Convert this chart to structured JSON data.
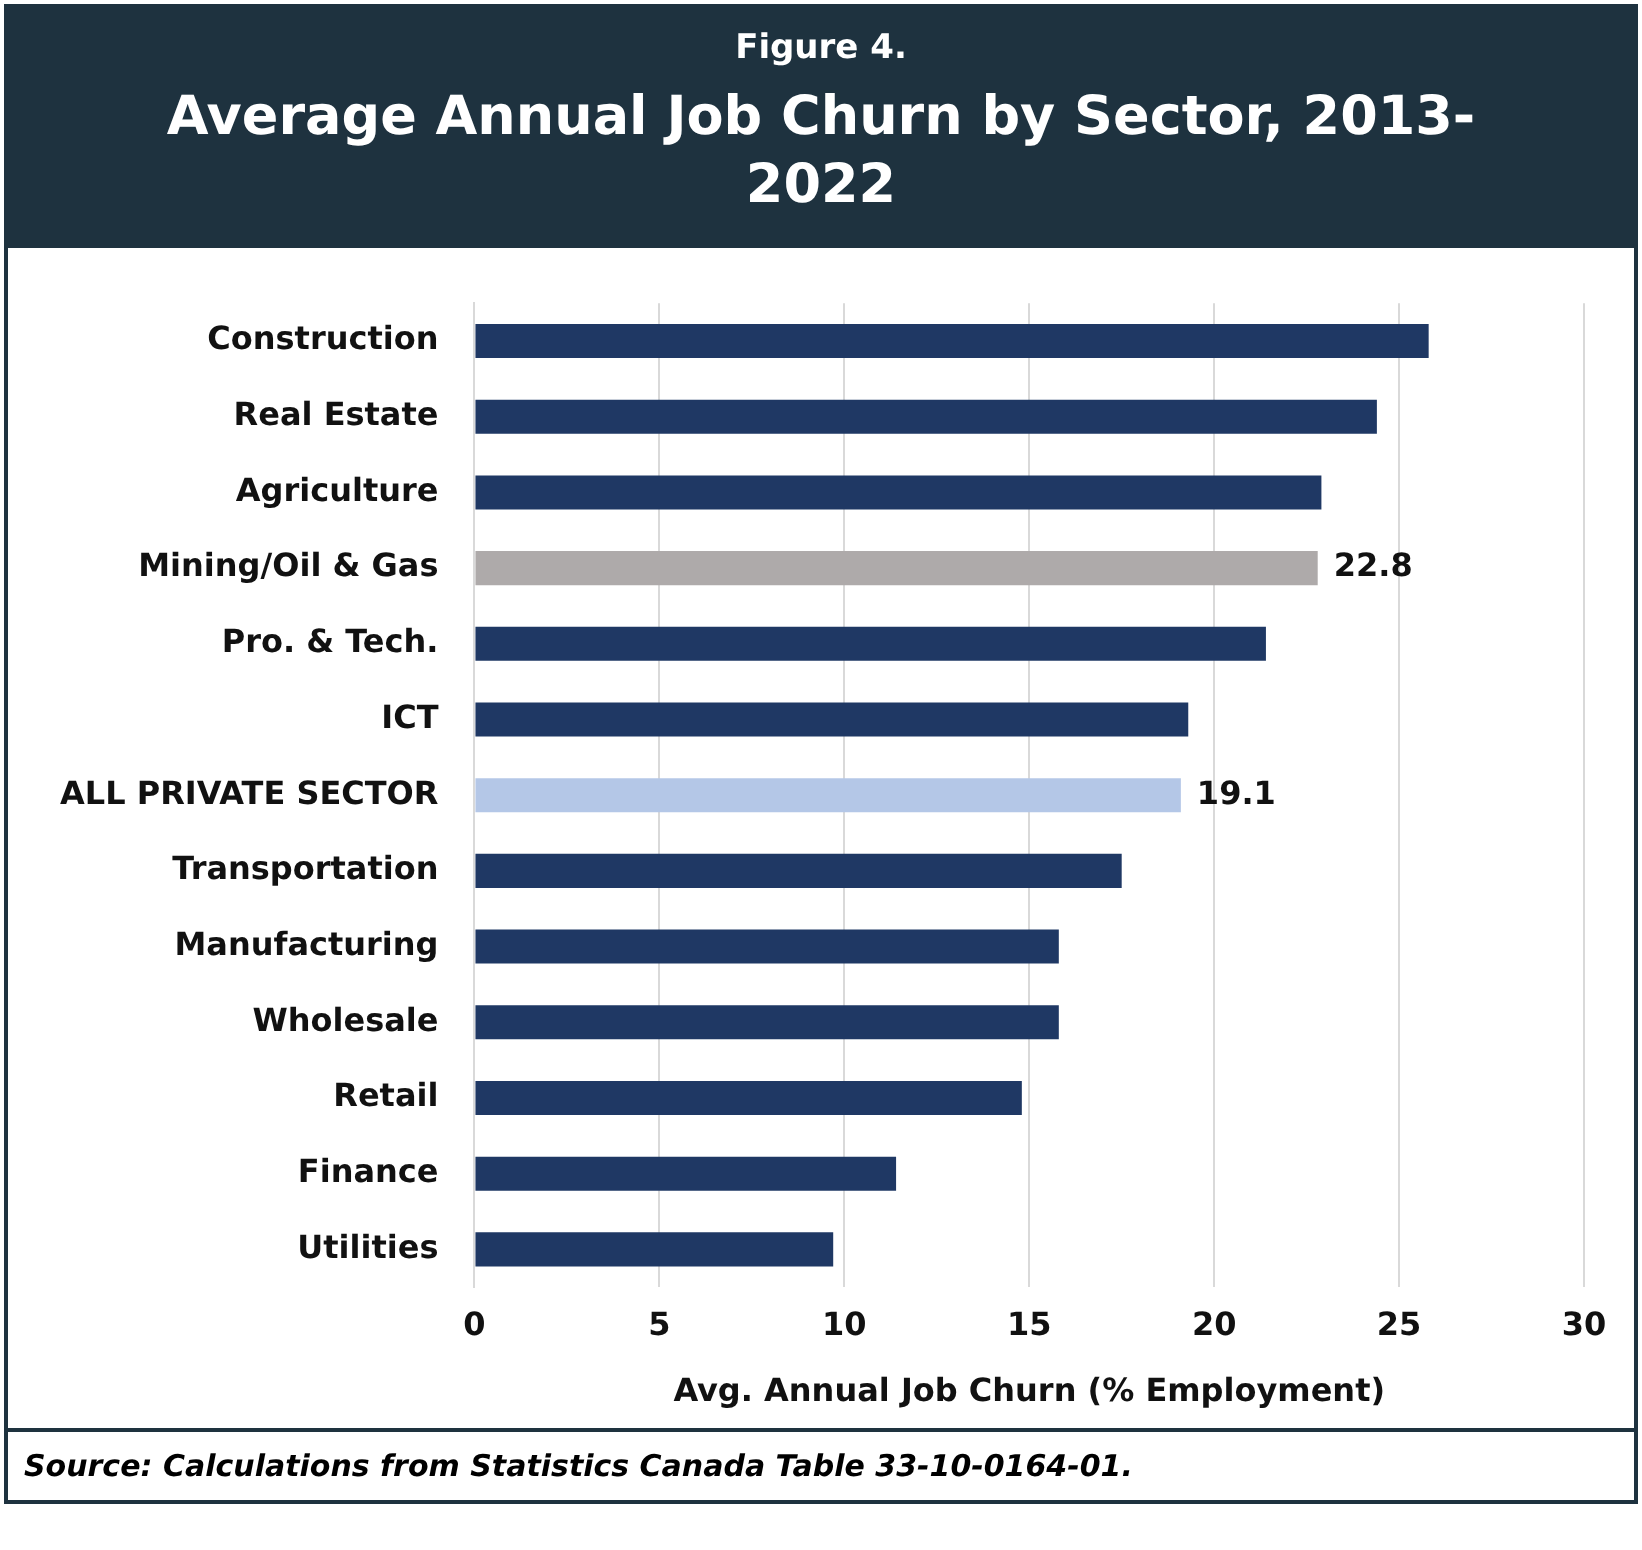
{
  "chart_data": {
    "type": "bar",
    "orientation": "horizontal",
    "subtitle": "Figure 4.",
    "title": "Average Annual Job Churn by Sector, 2013-2022",
    "xlabel": "Avg. Annual Job Churn (% Employment)",
    "categories": [
      "Construction",
      "Real Estate",
      "Agriculture",
      "Mining/Oil & Gas",
      "Pro. & Tech.",
      "ICT",
      "ALL PRIVATE SECTOR",
      "Transportation",
      "Manufacturing",
      "Wholesale",
      "Retail",
      "Finance",
      "Utilities"
    ],
    "values": [
      25.8,
      24.4,
      22.9,
      22.8,
      21.4,
      19.3,
      19.1,
      17.5,
      15.8,
      15.8,
      14.8,
      11.4,
      9.7
    ],
    "colors": [
      "#1f3864",
      "#1f3864",
      "#1f3864",
      "#aeaaaa",
      "#1f3864",
      "#1f3864",
      "#b4c7e7",
      "#1f3864",
      "#1f3864",
      "#1f3864",
      "#1f3864",
      "#1f3864",
      "#1f3864"
    ],
    "value_labels": [
      null,
      null,
      null,
      "22.8",
      null,
      null,
      "19.1",
      null,
      null,
      null,
      null,
      null,
      null
    ],
    "xlim": [
      0,
      30
    ],
    "xticks": [
      0,
      5,
      10,
      15,
      20,
      25,
      30
    ],
    "grid": "x",
    "legend": false,
    "annotations": [
      "Source: Calculations from Statistics Canada Table 33-10-0164-01."
    ]
  }
}
